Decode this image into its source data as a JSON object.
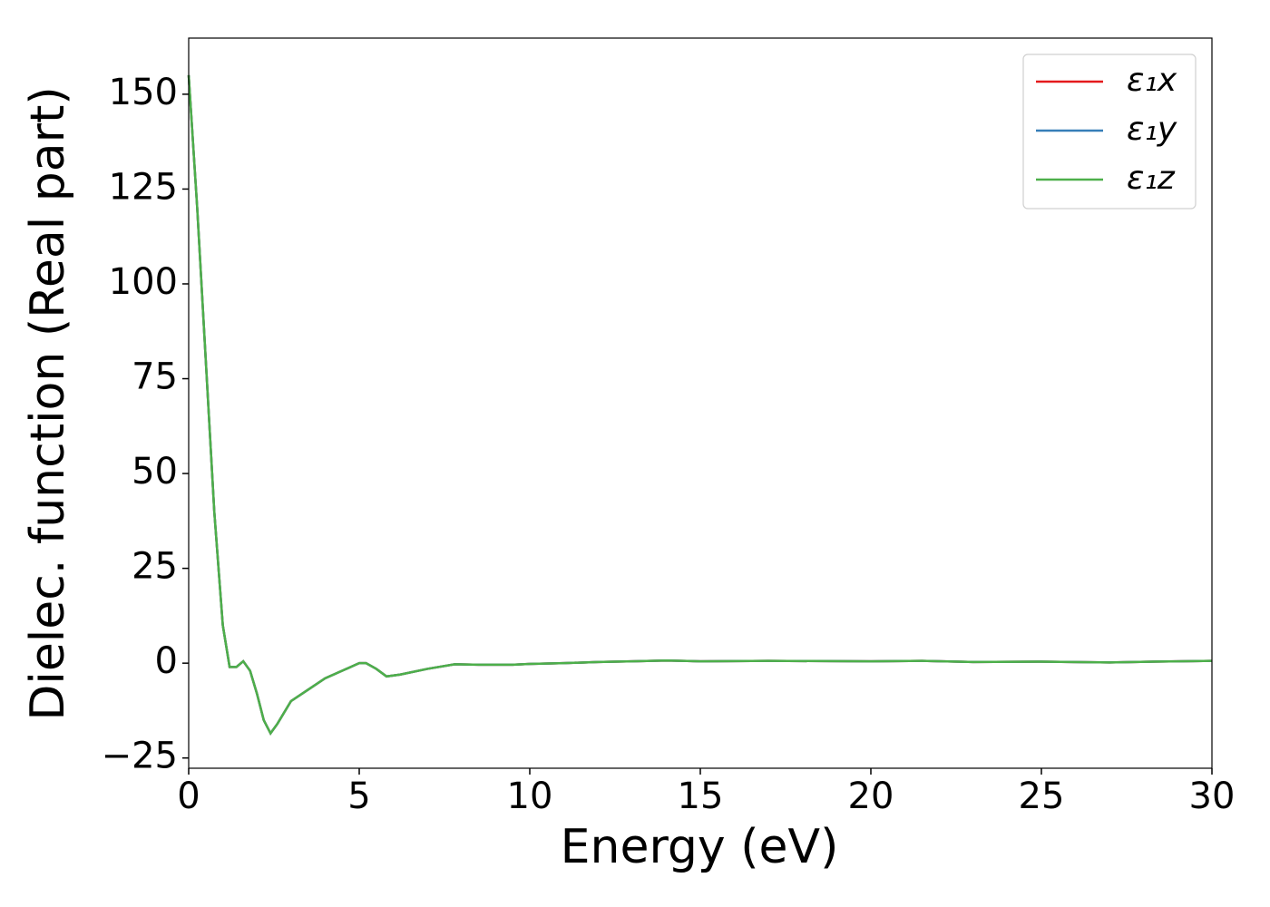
{
  "chart_data": {
    "type": "line",
    "xlabel": "Energy (eV)",
    "ylabel": "Dielec. function (Real part)",
    "x": [
      0,
      0.25,
      0.5,
      0.75,
      1.0,
      1.2,
      1.4,
      1.6,
      1.8,
      2.0,
      2.2,
      2.4,
      2.6,
      3.0,
      3.5,
      4.0,
      4.5,
      5.0,
      5.2,
      5.5,
      5.8,
      6.2,
      7.0,
      7.8,
      8.5,
      9.5,
      10,
      11,
      12,
      13,
      14,
      15,
      17,
      20,
      21.5,
      23,
      25,
      27,
      29,
      30
    ],
    "series": [
      {
        "name": "ε₁x",
        "color": "#e41a1c",
        "values": [
          155,
          120,
          80,
          40,
          10,
          -1,
          -1,
          0.5,
          -2,
          -8,
          -15,
          -18.5,
          -16,
          -10,
          -7,
          -4,
          -2,
          0,
          0,
          -1.5,
          -3.5,
          -3,
          -1.5,
          -0.3,
          -0.4,
          -0.4,
          -0.2,
          0,
          0.3,
          0.5,
          0.7,
          0.5,
          0.6,
          0.5,
          0.6,
          0.3,
          0.4,
          0.2,
          0.5,
          0.6
        ]
      },
      {
        "name": "ε₁y",
        "color": "#377eb8",
        "values": [
          155,
          120,
          80,
          40,
          10,
          -1,
          -1,
          0.5,
          -2,
          -8,
          -15,
          -18.5,
          -16,
          -10,
          -7,
          -4,
          -2,
          0,
          0,
          -1.5,
          -3.5,
          -3,
          -1.5,
          -0.3,
          -0.4,
          -0.4,
          -0.2,
          0,
          0.3,
          0.5,
          0.7,
          0.5,
          0.6,
          0.5,
          0.6,
          0.3,
          0.4,
          0.2,
          0.5,
          0.6
        ]
      },
      {
        "name": "ε₁z",
        "color": "#4daf4a",
        "values": [
          155,
          120,
          80,
          40,
          10,
          -1,
          -1,
          0.5,
          -2,
          -8,
          -15,
          -18.5,
          -16,
          -10,
          -7,
          -4,
          -2,
          0,
          0,
          -1.5,
          -3.5,
          -3,
          -1.5,
          -0.3,
          -0.4,
          -0.4,
          -0.2,
          0,
          0.3,
          0.5,
          0.7,
          0.5,
          0.6,
          0.5,
          0.6,
          0.3,
          0.4,
          0.2,
          0.5,
          0.6
        ]
      }
    ],
    "xlim": [
      0,
      30
    ],
    "xticks": [
      0,
      5,
      10,
      15,
      20,
      25,
      30
    ],
    "ylim": [
      -27.7,
      164.8
    ],
    "yticks": [
      {
        "value": -25,
        "label": "−25"
      },
      0,
      25,
      50,
      75,
      100,
      125,
      150
    ],
    "legend": "upper right"
  }
}
